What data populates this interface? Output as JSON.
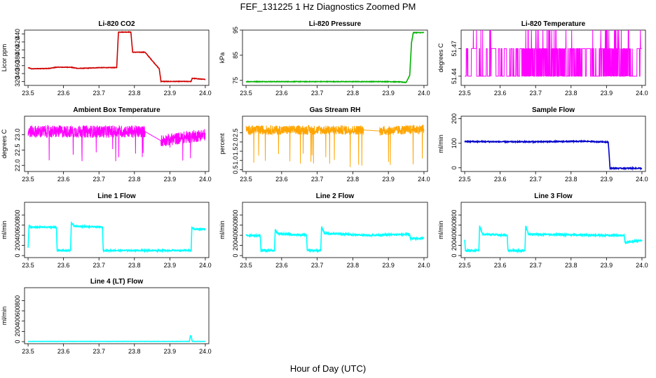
{
  "figure": {
    "title": "FEF_131225  1 Hz Diagnostics Zoomed PM",
    "xlabel": "Hour of Day (UTC)"
  },
  "chart_data": [
    {
      "type": "line",
      "title": "Li-820 CO2",
      "ylabel": "Licor ppm",
      "color": "#d00000",
      "xlim": [
        23.49,
        24.01
      ],
      "ylim": [
        310,
        450
      ],
      "xticks": [
        "23.5",
        "23.6",
        "23.7",
        "23.8",
        "23.9",
        "24.0"
      ],
      "yticks": [
        "320",
        "340",
        "360",
        "380",
        "400",
        "420",
        "440"
      ],
      "noise": 0.6,
      "x": [
        23.5,
        23.51,
        23.56,
        23.58,
        23.62,
        23.64,
        23.68,
        23.7,
        23.75,
        23.755,
        23.79,
        23.795,
        23.83,
        23.87,
        23.875,
        23.96,
        23.963,
        24.0
      ],
      "y": [
        355,
        352,
        353,
        356,
        356,
        353,
        354,
        355,
        355,
        445,
        445,
        394,
        394,
        352,
        320,
        320,
        328,
        325
      ]
    },
    {
      "type": "line",
      "title": "Li-820 Pressure",
      "ylabel": "kPa",
      "color": "#00b000",
      "xlim": [
        23.49,
        24.01
      ],
      "ylim": [
        73,
        95
      ],
      "xticks": [
        "23.5",
        "23.6",
        "23.7",
        "23.8",
        "23.9",
        "24.0"
      ],
      "yticks": [
        "75",
        "85",
        "95"
      ],
      "noise": 0.1,
      "x": [
        23.5,
        23.9,
        23.93,
        23.95,
        23.96,
        23.965,
        23.97,
        24.0
      ],
      "y": [
        74.5,
        74.5,
        74.4,
        74.2,
        77,
        90,
        94,
        94
      ]
    },
    {
      "type": "noise",
      "title": "Li-820 Temperature",
      "ylabel": "degrees C",
      "color": "#ff00ff",
      "xlim": [
        23.49,
        24.01
      ],
      "ylim": [
        51.43,
        51.49
      ],
      "xticks": [
        "23.5",
        "23.6",
        "23.7",
        "23.8",
        "23.9",
        "24.0"
      ],
      "yticks": [
        "51.44",
        "51.47"
      ],
      "low": 51.44,
      "high": 51.47,
      "spike": 51.49,
      "x": [
        23.5,
        24.0
      ]
    },
    {
      "type": "noise",
      "title": "Ambient Box Temperature",
      "ylabel": "degrees C",
      "color": "#ff00ff",
      "xlim": [
        23.49,
        24.01
      ],
      "ylim": [
        21.8,
        23.6
      ],
      "xticks": [
        "23.5",
        "23.6",
        "23.7",
        "23.8",
        "23.9",
        "24.0"
      ],
      "yticks": [
        "22.0",
        "22.5",
        "23.0"
      ],
      "x": [
        23.5,
        23.83,
        23.875,
        24.0
      ],
      "y": [
        23.1,
        23.1,
        22.8,
        23.0
      ],
      "spread": 0.2,
      "dips": [
        22.0,
        22.1,
        22.2
      ]
    },
    {
      "type": "noise",
      "title": "Gas Stream RH",
      "ylabel": "percent",
      "color": "#ffa500",
      "xlim": [
        23.49,
        24.01
      ],
      "ylim": [
        0.4,
        3.4
      ],
      "xticks": [
        "23.5",
        "23.6",
        "23.7",
        "23.8",
        "23.9",
        "24.0"
      ],
      "yticks": [
        "0.5",
        "1.0",
        "1.5",
        "2.0",
        "2.5"
      ],
      "x": [
        23.5,
        23.83,
        23.875,
        24.0
      ],
      "y": [
        2.65,
        2.65,
        2.6,
        2.7
      ],
      "spread": 0.25,
      "dips": [
        0.6,
        0.8,
        1.0
      ]
    },
    {
      "type": "line",
      "title": "Sample Flow",
      "ylabel": "ml/min",
      "color": "#0000cc",
      "xlim": [
        23.49,
        24.01
      ],
      "ylim": [
        -15,
        210
      ],
      "xticks": [
        "23.5",
        "23.6",
        "23.7",
        "23.8",
        "23.9",
        "24.0"
      ],
      "yticks": [
        "0",
        "100",
        "200"
      ],
      "noise": 2,
      "x": [
        23.5,
        23.6,
        23.7,
        23.84,
        23.88,
        23.905,
        23.91,
        24.0
      ],
      "y": [
        107,
        106,
        106,
        108,
        106,
        105,
        -2,
        -2
      ]
    },
    {
      "type": "line",
      "title": "Line 1 Flow",
      "ylabel": "ml/min",
      "color": "#00ffff",
      "xlim": [
        23.49,
        24.01
      ],
      "ylim": [
        -40,
        1050
      ],
      "xticks": [
        "23.5",
        "23.6",
        "23.7",
        "23.8",
        "23.9",
        "24.0"
      ],
      "yticks": [
        "0",
        "200",
        "400",
        "600",
        "800"
      ],
      "noise": 12,
      "x": [
        23.5,
        23.503,
        23.507,
        23.58,
        23.582,
        23.62,
        23.622,
        23.63,
        23.71,
        23.712,
        23.96,
        23.962,
        23.97,
        24.0
      ],
      "y": [
        150,
        600,
        560,
        560,
        100,
        100,
        650,
        580,
        560,
        100,
        100,
        550,
        520,
        520
      ]
    },
    {
      "type": "line",
      "title": "Line 2 Flow",
      "ylabel": "ml/min",
      "color": "#00ffff",
      "xlim": [
        23.49,
        24.01
      ],
      "ylim": [
        -40,
        1050
      ],
      "xticks": [
        "23.5",
        "23.6",
        "23.7",
        "23.8",
        "23.9",
        "24.0"
      ],
      "yticks": [
        "0",
        "200",
        "400",
        "600",
        "800"
      ],
      "noise": 16,
      "x": [
        23.5,
        23.54,
        23.542,
        23.58,
        23.582,
        23.59,
        23.67,
        23.672,
        23.71,
        23.712,
        23.72,
        23.84,
        23.96,
        23.962,
        24.0
      ],
      "y": [
        400,
        390,
        100,
        100,
        510,
        430,
        400,
        100,
        100,
        560,
        440,
        400,
        420,
        330,
        340
      ]
    },
    {
      "type": "line",
      "title": "Line 3 Flow",
      "ylabel": "ml/min",
      "color": "#00ffff",
      "xlim": [
        23.49,
        24.01
      ],
      "ylim": [
        -40,
        1050
      ],
      "xticks": [
        "23.5",
        "23.6",
        "23.7",
        "23.8",
        "23.9",
        "24.0"
      ],
      "yticks": [
        "0",
        "200",
        "400",
        "600",
        "800"
      ],
      "noise": 16,
      "x": [
        23.5,
        23.502,
        23.54,
        23.542,
        23.55,
        23.62,
        23.622,
        23.67,
        23.672,
        23.68,
        23.9,
        23.95,
        23.952,
        24.0
      ],
      "y": [
        300,
        100,
        100,
        600,
        420,
        400,
        100,
        100,
        590,
        420,
        400,
        400,
        260,
        300
      ]
    },
    {
      "type": "line",
      "title": "Line 4 (LT) Flow",
      "ylabel": "ml/min",
      "color": "#00ffff",
      "xlim": [
        23.49,
        24.01
      ],
      "ylim": [
        -40,
        1050
      ],
      "xticks": [
        "23.5",
        "23.6",
        "23.7",
        "23.8",
        "23.9",
        "24.0"
      ],
      "yticks": [
        "0",
        "200",
        "400",
        "600",
        "800"
      ],
      "noise": 2,
      "x": [
        23.5,
        23.955,
        23.958,
        23.96,
        23.963,
        24.0
      ],
      "y": [
        5,
        5,
        120,
        110,
        5,
        5
      ]
    }
  ]
}
